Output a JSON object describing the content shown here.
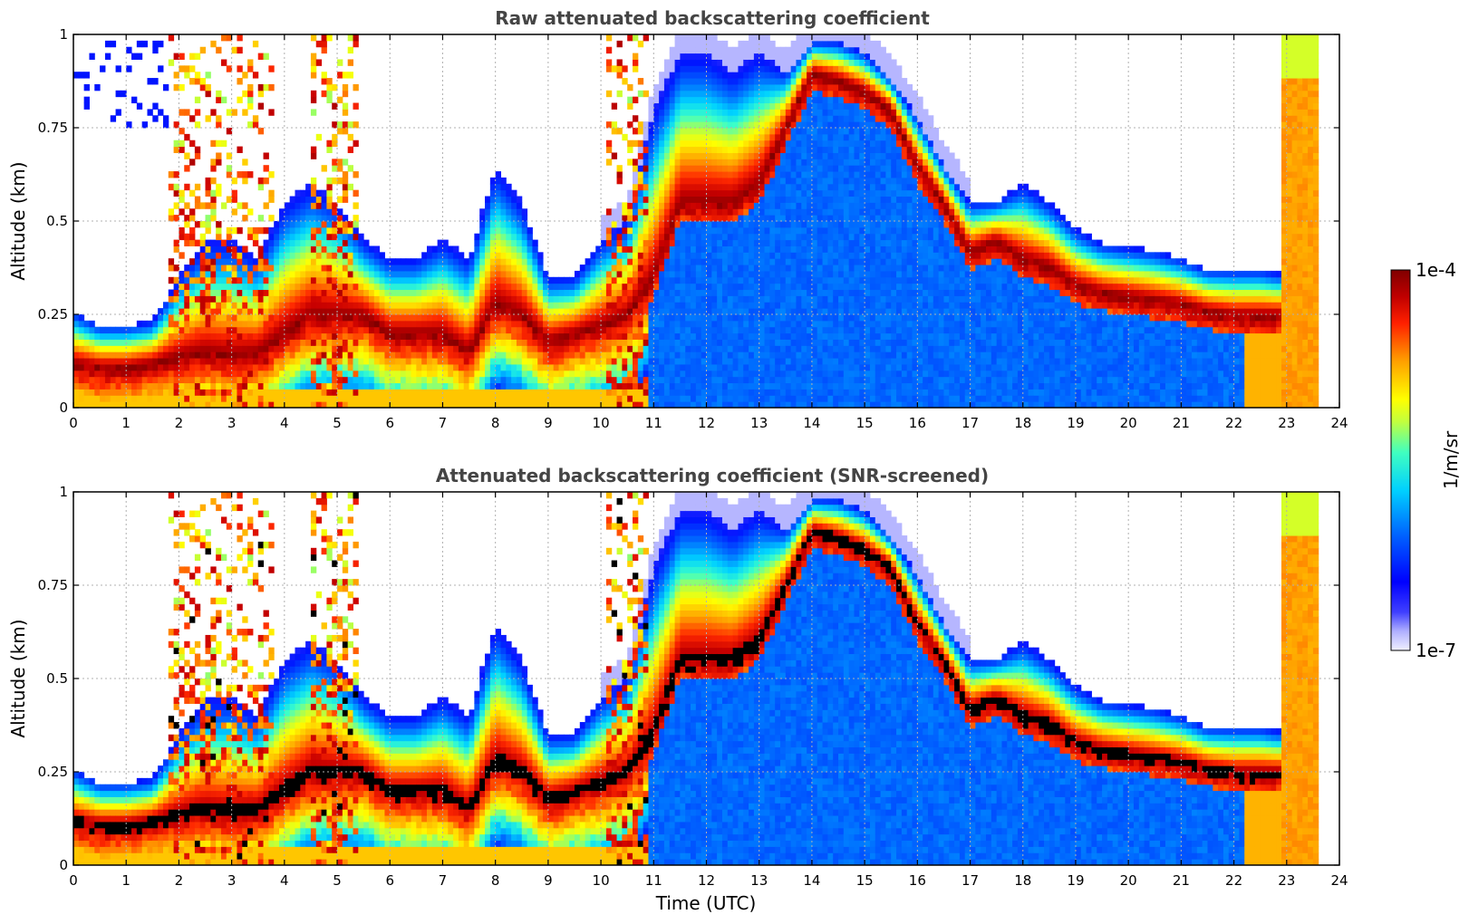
{
  "chart_data": [
    {
      "type": "heatmap",
      "title": "Raw attenuated backscattering coefficient",
      "xlabel": "",
      "ylabel": "Altitude (km)",
      "xlim": [
        0,
        24
      ],
      "ylim": [
        0,
        1
      ],
      "x_ticks": [
        "0",
        "1",
        "2",
        "3",
        "4",
        "5",
        "6",
        "7",
        "8",
        "9",
        "10",
        "11",
        "12",
        "13",
        "14",
        "15",
        "16",
        "17",
        "18",
        "19",
        "20",
        "21",
        "22",
        "23",
        "24"
      ],
      "y_ticks": [
        "0",
        "0.25",
        "0.5",
        "0.75",
        "1"
      ],
      "y_tick_values": [
        0,
        0.25,
        0.5,
        0.75,
        1
      ],
      "grid": true,
      "screened": false,
      "layer_top_km": [
        [
          0,
          0.26
        ],
        [
          0.5,
          0.22
        ],
        [
          1,
          0.22
        ],
        [
          1.5,
          0.23
        ],
        [
          2,
          0.35
        ],
        [
          2.5,
          0.45
        ],
        [
          3,
          0.45
        ],
        [
          3.5,
          0.4
        ],
        [
          4,
          0.55
        ],
        [
          4.5,
          0.6
        ],
        [
          5,
          0.55
        ],
        [
          5.5,
          0.45
        ],
        [
          6,
          0.4
        ],
        [
          6.5,
          0.4
        ],
        [
          7,
          0.45
        ],
        [
          7.5,
          0.4
        ],
        [
          8,
          0.65
        ],
        [
          8.5,
          0.55
        ],
        [
          9,
          0.35
        ],
        [
          9.5,
          0.35
        ],
        [
          10,
          0.45
        ],
        [
          10.5,
          0.5
        ],
        [
          11,
          0.8
        ],
        [
          11.5,
          0.95
        ],
        [
          12,
          0.95
        ],
        [
          12.5,
          0.9
        ],
        [
          13,
          0.95
        ],
        [
          13.5,
          0.9
        ],
        [
          14,
          0.98
        ],
        [
          14.5,
          0.98
        ],
        [
          15,
          0.95
        ],
        [
          15.5,
          0.88
        ],
        [
          16,
          0.78
        ],
        [
          16.5,
          0.65
        ],
        [
          17,
          0.55
        ],
        [
          17.5,
          0.55
        ],
        [
          18,
          0.6
        ],
        [
          18.5,
          0.55
        ],
        [
          19,
          0.48
        ],
        [
          19.5,
          0.44
        ],
        [
          20,
          0.43
        ],
        [
          20.5,
          0.42
        ],
        [
          21,
          0.4
        ],
        [
          21.5,
          0.37
        ],
        [
          22,
          0.37
        ],
        [
          22.5,
          0.37
        ],
        [
          22.8,
          0.36
        ]
      ],
      "layer_peak_km": [
        [
          0,
          0.12
        ],
        [
          0.5,
          0.11
        ],
        [
          1,
          0.11
        ],
        [
          1.5,
          0.12
        ],
        [
          2,
          0.14
        ],
        [
          2.5,
          0.15
        ],
        [
          3,
          0.14
        ],
        [
          3.5,
          0.15
        ],
        [
          4,
          0.2
        ],
        [
          4.5,
          0.25
        ],
        [
          5,
          0.25
        ],
        [
          5.5,
          0.25
        ],
        [
          6,
          0.2
        ],
        [
          6.5,
          0.2
        ],
        [
          7,
          0.2
        ],
        [
          7.5,
          0.15
        ],
        [
          8,
          0.28
        ],
        [
          8.5,
          0.25
        ],
        [
          9,
          0.18
        ],
        [
          9.5,
          0.2
        ],
        [
          10,
          0.22
        ],
        [
          10.5,
          0.25
        ],
        [
          11,
          0.35
        ],
        [
          11.5,
          0.55
        ],
        [
          12,
          0.55
        ],
        [
          12.5,
          0.55
        ],
        [
          13,
          0.6
        ],
        [
          13.5,
          0.75
        ],
        [
          14,
          0.9
        ],
        [
          14.5,
          0.88
        ],
        [
          15,
          0.85
        ],
        [
          15.5,
          0.8
        ],
        [
          16,
          0.65
        ],
        [
          16.5,
          0.55
        ],
        [
          17,
          0.42
        ],
        [
          17.5,
          0.45
        ],
        [
          18,
          0.4
        ],
        [
          18.5,
          0.38
        ],
        [
          19,
          0.33
        ],
        [
          19.5,
          0.31
        ],
        [
          20,
          0.3
        ],
        [
          20.5,
          0.29
        ],
        [
          21,
          0.28
        ],
        [
          21.5,
          0.26
        ],
        [
          22,
          0.25
        ],
        [
          22.5,
          0.25
        ],
        [
          22.8,
          0.25
        ]
      ]
    },
    {
      "type": "heatmap",
      "title": "Attenuated backscattering coefficient (SNR-screened)",
      "xlabel": "Time (UTC)",
      "ylabel": "Altitude (km)",
      "xlim": [
        0,
        24
      ],
      "ylim": [
        0,
        1
      ],
      "x_ticks": [
        "0",
        "1",
        "2",
        "3",
        "4",
        "5",
        "6",
        "7",
        "8",
        "9",
        "10",
        "11",
        "12",
        "13",
        "14",
        "15",
        "16",
        "17",
        "18",
        "19",
        "20",
        "21",
        "22",
        "23",
        "24"
      ],
      "y_ticks": [
        "0",
        "0.25",
        "0.5",
        "0.75",
        "1"
      ],
      "y_tick_values": [
        0,
        0.25,
        0.5,
        0.75,
        1
      ],
      "grid": true,
      "screened": true
    }
  ],
  "colorbar": {
    "label": "1/m/sr",
    "max_label": "1e-4",
    "min_label": "1e-7",
    "scale": "log",
    "colormap": "jet-with-light-lavender-low-end",
    "saturation_color_screened": "#000000"
  },
  "colors": {
    "dark_red": "#800000",
    "red": "#ff2a00",
    "orange": "#ff9900",
    "yellow": "#e8f000",
    "cyan": "#00e0e0",
    "blue": "#0030ff",
    "lavender": "#e8e8ff"
  }
}
